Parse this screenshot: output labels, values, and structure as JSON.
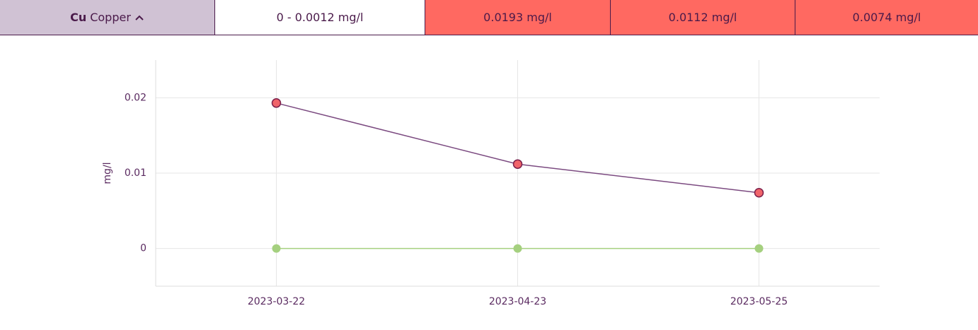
{
  "row": {
    "parameter": {
      "symbol": "Cu",
      "name": "Copper"
    },
    "cells": [
      "0 - 0.0012 mg/l",
      "0.0193 mg/l",
      "0.0112 mg/l",
      "0.0074 mg/l"
    ]
  },
  "chart_data": {
    "type": "line",
    "y_label": "mg/l",
    "categories": [
      "2023-03-22",
      "2023-04-23",
      "2023-05-25"
    ],
    "series": [
      {
        "color": "#7b4a80",
        "point_color": "#f0646a",
        "values": [
          0.0193,
          0.0112,
          0.0074
        ]
      },
      {
        "color": "#a5d07f",
        "point_color": "#a5d07f",
        "values": [
          0,
          0,
          0
        ]
      }
    ],
    "ylim": [
      -0.005,
      0.025
    ],
    "yticks": [
      0,
      0.01,
      0.02
    ],
    "grid": true
  }
}
